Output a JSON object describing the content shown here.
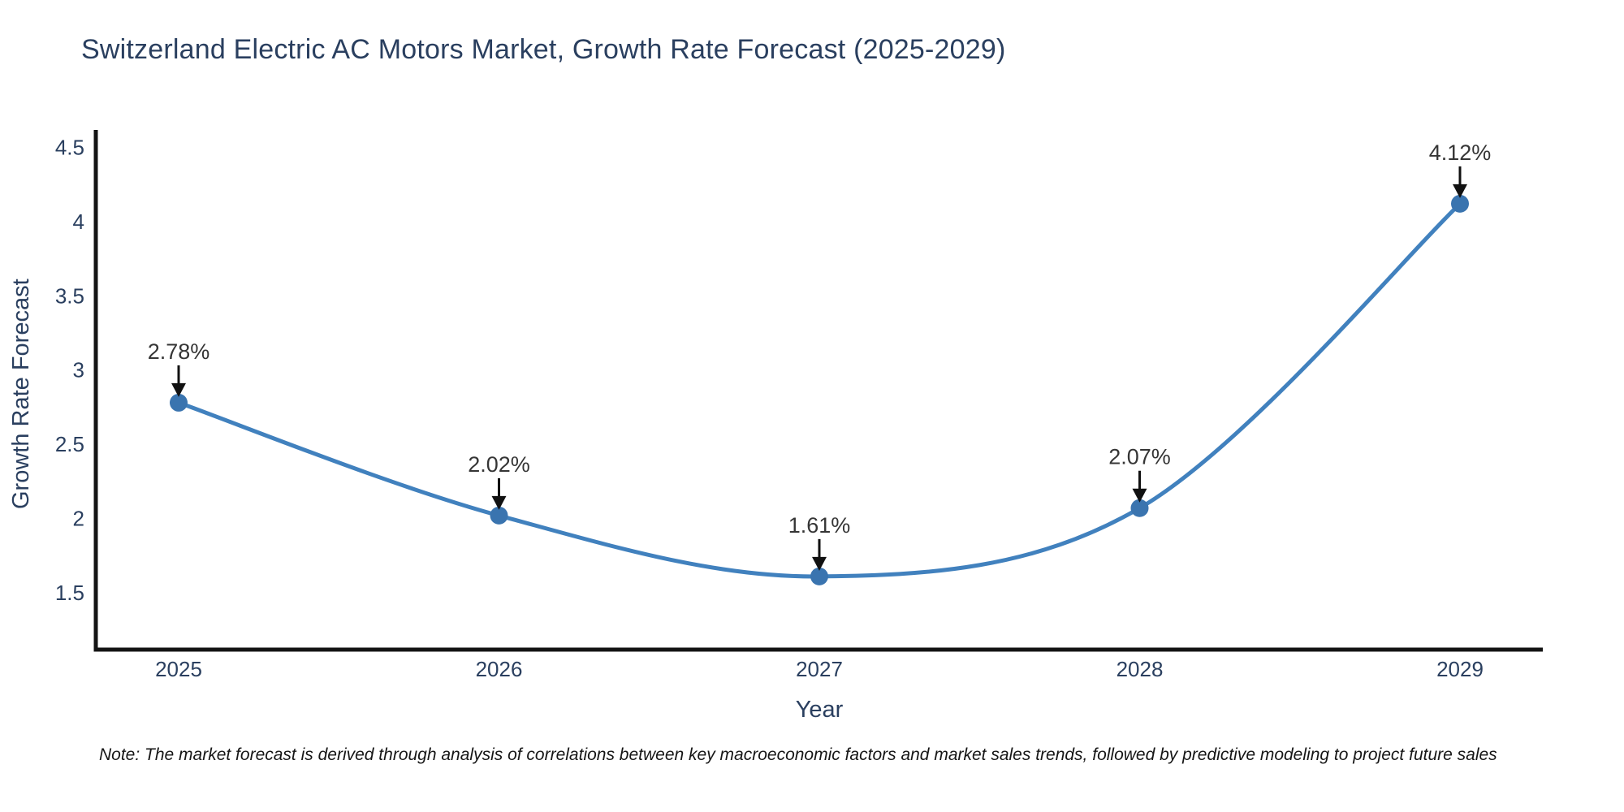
{
  "chart_data": {
    "type": "line",
    "title": "Switzerland Electric AC Motors Market, Growth Rate Forecast (2025-2029)",
    "xlabel": "Year",
    "ylabel": "Growth Rate Forecast",
    "categories": [
      "2025",
      "2026",
      "2027",
      "2028",
      "2029"
    ],
    "series": [
      {
        "name": "Growth Rate Forecast",
        "values": [
          2.78,
          2.02,
          1.61,
          2.07,
          4.12
        ],
        "point_labels": [
          "2.78%",
          "2.02%",
          "1.61%",
          "2.07%",
          "4.12%"
        ]
      }
    ],
    "line_shape": "spline",
    "markers": true,
    "grid": false,
    "legend_position": "none",
    "y_ticks": [
      "1.5",
      "2",
      "2.5",
      "3",
      "3.5",
      "4",
      "4.5"
    ],
    "y_tick_values": [
      1.5,
      2.0,
      2.5,
      3.0,
      3.5,
      4.0,
      4.5
    ],
    "ylim": [
      1.117,
      4.617
    ],
    "colors": {
      "line": "#4181be",
      "marker": "#3a74af",
      "arrow": "#111111",
      "axis_line": "#141414",
      "axis_text": "#2a3f5f",
      "annotation_text": "#353535"
    }
  },
  "note": {
    "text": "Note: The market forecast is derived through analysis of correlations between key macroeconomic factors and market sales trends, followed by predictive modeling to project future sales"
  }
}
